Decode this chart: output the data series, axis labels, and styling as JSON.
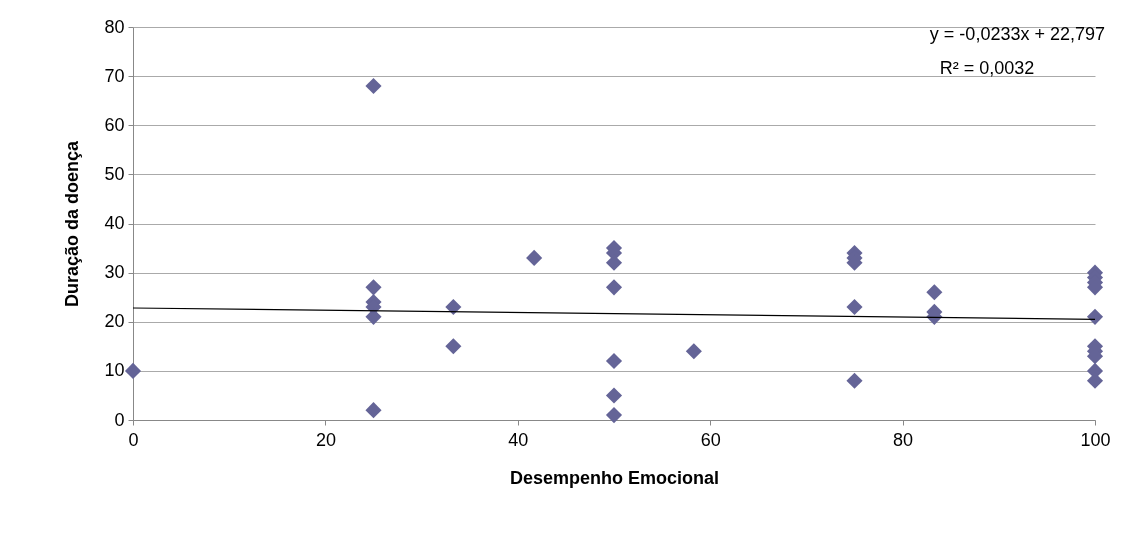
{
  "chart_data": {
    "type": "scatter",
    "xlabel": "Desempenho Emocional",
    "ylabel": "Duração da doença",
    "xlim": [
      0,
      100
    ],
    "xticks": [
      0,
      20,
      40,
      60,
      80,
      100
    ],
    "ylim": [
      0,
      80
    ],
    "yticks": [
      0,
      10,
      20,
      30,
      40,
      50,
      60,
      70,
      80
    ],
    "grid": "y",
    "marker": "diamond",
    "annotations": [
      "y = -0,0233x + 22,797",
      "R² = 0,0032"
    ],
    "series": [
      {
        "color": "#646497",
        "x": [
          0,
          25,
          25,
          25,
          25,
          25,
          25,
          33.3,
          33.3,
          41.7,
          50,
          50,
          50,
          50,
          50,
          50,
          50,
          58.3,
          75,
          75,
          75,
          75,
          75,
          83.3,
          83.3,
          83.3,
          100,
          100,
          100,
          100,
          100,
          100,
          100,
          100,
          100,
          100
        ],
        "values": [
          10,
          68,
          27,
          24,
          23,
          21,
          2,
          23,
          15,
          33,
          35,
          34,
          32,
          27,
          12,
          5,
          1,
          14,
          34,
          33,
          32,
          23,
          8,
          26,
          22,
          21,
          30,
          29,
          28,
          27,
          21,
          15,
          14,
          13,
          10,
          8
        ]
      },
      {
        "type": "line",
        "marker": "none",
        "line_style": "solid",
        "color": "#000000",
        "x": [
          0,
          100
        ],
        "values": [
          22.8,
          20.5
        ]
      }
    ]
  }
}
